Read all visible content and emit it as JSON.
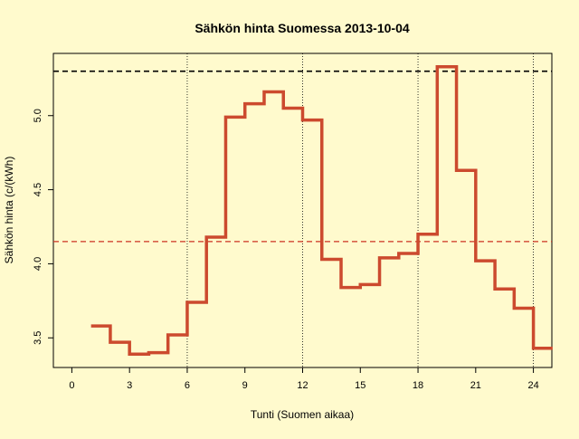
{
  "chart_data": {
    "type": "line",
    "title": "Sähkön hinta Suomessa 2013-10-04",
    "xlabel": "Tunti (Suomen aikaa)",
    "ylabel": "Sähkön hinta (c/(kWh)",
    "xlim": [
      -0.96,
      24.96
    ],
    "ylim": [
      3.3,
      5.42
    ],
    "x_ticks": [
      0,
      3,
      6,
      9,
      12,
      15,
      18,
      21,
      24
    ],
    "x_tick_labels": [
      "0",
      "3",
      "6",
      "9",
      "12",
      "15",
      "18",
      "21",
      "24"
    ],
    "y_ticks": [
      3.5,
      4.0,
      4.5,
      5.0
    ],
    "y_tick_labels": [
      "3.5",
      "4.0",
      "4.5",
      "5.0"
    ],
    "vertical_reference_lines": [
      6,
      12,
      18,
      24
    ],
    "reference_lines": [
      {
        "y": 5.3,
        "color": "#000000",
        "style": "dashed"
      },
      {
        "y": 4.15,
        "color": "#CC3322",
        "style": "dashed"
      }
    ],
    "series": [
      {
        "step": "post",
        "color": "#CC4A2E",
        "x": [
          1,
          2,
          3,
          4,
          5,
          6,
          7,
          8,
          9,
          10,
          11,
          12,
          13,
          14,
          15,
          16,
          17,
          18,
          19,
          20,
          21,
          22,
          23,
          24,
          25
        ],
        "values": [
          3.58,
          3.47,
          3.39,
          3.4,
          3.52,
          3.74,
          4.18,
          4.99,
          5.08,
          5.16,
          5.05,
          4.97,
          4.03,
          3.84,
          3.86,
          4.04,
          4.07,
          4.2,
          5.33,
          4.63,
          4.02,
          3.83,
          3.7,
          3.43,
          3.43
        ]
      }
    ],
    "grid": false,
    "legend": "none"
  }
}
